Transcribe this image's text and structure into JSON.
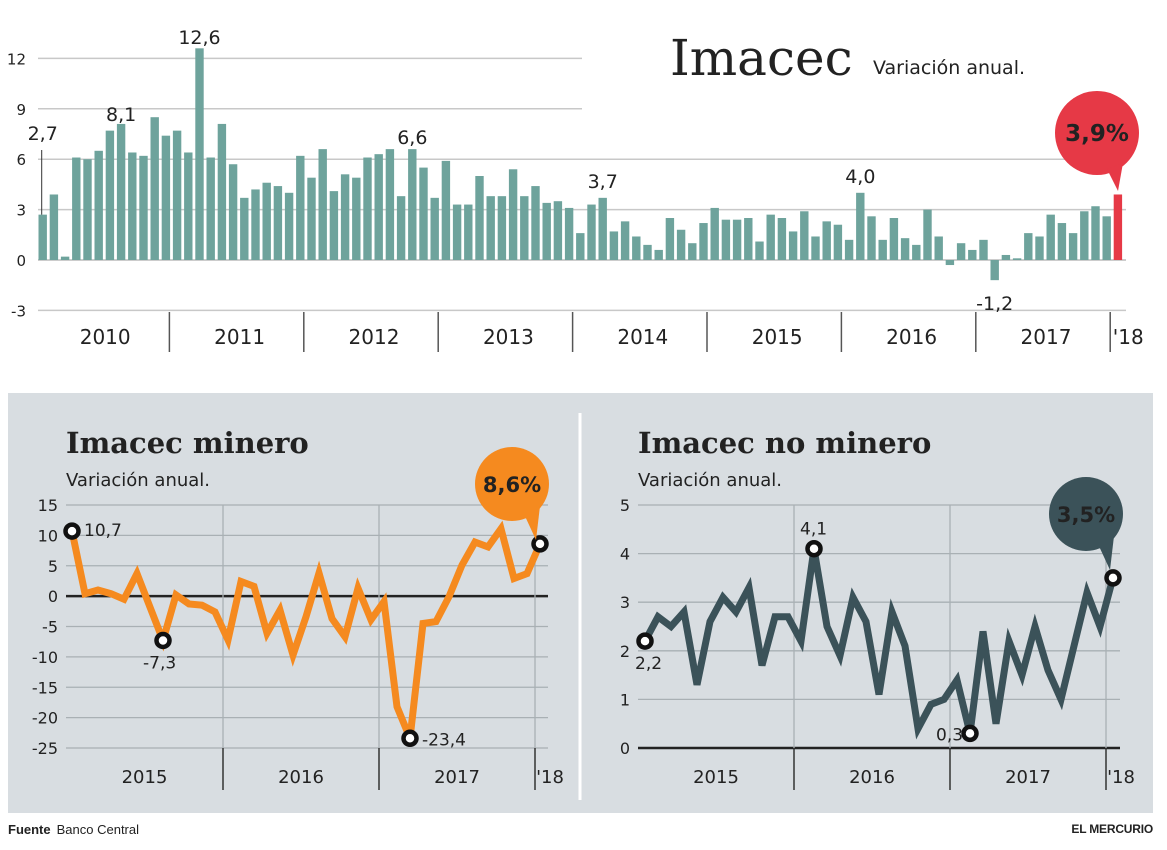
{
  "chart_data": [
    {
      "id": "imacec",
      "type": "bar",
      "title": "Imacec",
      "subtitle": "Variación anual.",
      "xlabel": "",
      "ylabel": "",
      "ylim": [
        -3,
        12
      ],
      "yticks": [
        -3,
        0,
        3,
        6,
        9,
        12
      ],
      "grid": true,
      "year_labels": [
        "2010",
        "2011",
        "2012",
        "2013",
        "2014",
        "2015",
        "2016",
        "2017",
        "'18"
      ],
      "colors": {
        "bar": "#6ea39c",
        "highlight": "#e63946"
      },
      "values": [
        2.7,
        3.9,
        0.2,
        6.1,
        6.0,
        6.5,
        7.7,
        8.1,
        6.4,
        6.2,
        8.5,
        7.4,
        7.7,
        6.4,
        12.6,
        6.1,
        8.1,
        5.7,
        3.7,
        4.2,
        4.6,
        4.4,
        4.0,
        6.2,
        4.9,
        6.6,
        4.1,
        5.1,
        4.9,
        6.1,
        6.3,
        6.6,
        3.8,
        6.6,
        5.5,
        3.7,
        5.9,
        3.3,
        3.3,
        5.0,
        3.8,
        3.8,
        5.4,
        3.8,
        4.4,
        3.4,
        3.5,
        3.1,
        1.6,
        3.3,
        3.7,
        1.7,
        2.3,
        1.4,
        0.9,
        0.6,
        2.5,
        1.8,
        1.0,
        2.2,
        3.1,
        2.4,
        2.4,
        2.5,
        1.1,
        2.7,
        2.5,
        1.7,
        2.9,
        1.4,
        2.3,
        2.1,
        1.2,
        4.0,
        2.6,
        1.2,
        2.5,
        1.3,
        0.9,
        3.0,
        1.4,
        -0.3,
        1.0,
        0.6,
        1.2,
        -1.2,
        0.3,
        0.1,
        1.6,
        1.4,
        2.7,
        2.2,
        1.6,
        2.9,
        3.2,
        2.6,
        3.9
      ],
      "annotations": [
        {
          "index": 0,
          "text": "2,7"
        },
        {
          "index": 7,
          "text": "8,1"
        },
        {
          "index": 14,
          "text": "12,6"
        },
        {
          "index": 33,
          "text": "6,6"
        },
        {
          "index": 50,
          "text": "3,7"
        },
        {
          "index": 73,
          "text": "4,0"
        },
        {
          "index": 85,
          "text": "-1,2"
        }
      ],
      "callout": {
        "index": 96,
        "text": "3,9%"
      }
    },
    {
      "id": "minero",
      "type": "line",
      "title": "Imacec minero",
      "subtitle": "Variación anual.",
      "ylim": [
        -25,
        15
      ],
      "yticks": [
        -25,
        -20,
        -15,
        -10,
        -5,
        0,
        5,
        10,
        15
      ],
      "grid": true,
      "year_labels": [
        "2015",
        "2016",
        "2017",
        "'18"
      ],
      "colors": {
        "line": "#f58a1f",
        "callout": "#f58a1f"
      },
      "values": [
        10.7,
        0.4,
        1.0,
        0.4,
        -0.5,
        3.7,
        -1.8,
        -7.3,
        0.2,
        -1.3,
        -1.5,
        -2.6,
        -7.2,
        2.4,
        1.6,
        -6.1,
        -2.3,
        -9.7,
        -3.4,
        3.8,
        -3.7,
        -6.7,
        1.3,
        -3.9,
        -0.9,
        -18.2,
        -23.4,
        -4.5,
        -4.2,
        -0.1,
        5.1,
        8.9,
        8.1,
        11.1,
        2.9,
        3.7,
        8.6
      ],
      "markers": [
        {
          "index": 0,
          "text": "10,7"
        },
        {
          "index": 7,
          "text": "-7,3"
        },
        {
          "index": 26,
          "text": "-23,4"
        },
        {
          "index": 36,
          "text": ""
        }
      ],
      "callout": {
        "index": 36,
        "text": "8,6%"
      }
    },
    {
      "id": "no-minero",
      "type": "line",
      "title": "Imacec no minero",
      "subtitle": "Variación anual.",
      "ylim": [
        0,
        5
      ],
      "yticks": [
        0,
        1,
        2,
        3,
        4,
        5
      ],
      "grid": true,
      "year_labels": [
        "2015",
        "2016",
        "2017",
        "'18"
      ],
      "colors": {
        "line": "#3b5259",
        "callout": "#3b5259"
      },
      "values": [
        2.2,
        2.7,
        2.5,
        2.8,
        1.3,
        2.6,
        3.1,
        2.8,
        3.3,
        1.7,
        2.7,
        2.7,
        2.2,
        4.1,
        2.5,
        1.9,
        3.1,
        2.6,
        1.1,
        2.8,
        2.1,
        0.4,
        0.9,
        1.0,
        1.4,
        0.3,
        2.4,
        0.5,
        2.2,
        1.5,
        2.5,
        1.6,
        1.0,
        2.1,
        3.2,
        2.5,
        3.5
      ],
      "markers": [
        {
          "index": 0,
          "text": "2,2"
        },
        {
          "index": 13,
          "text": "4,1"
        },
        {
          "index": 25,
          "text": "0,3"
        },
        {
          "index": 36,
          "text": ""
        }
      ],
      "callout": {
        "index": 36,
        "text": "3,5%"
      }
    }
  ],
  "footer": {
    "source_label": "Fuente",
    "source": "Banco Central",
    "publisher": "EL MERCURIO"
  },
  "colors": {
    "panel_bg": "#d8dde1",
    "grid": "#a9b0b4",
    "axis": "#222222"
  }
}
